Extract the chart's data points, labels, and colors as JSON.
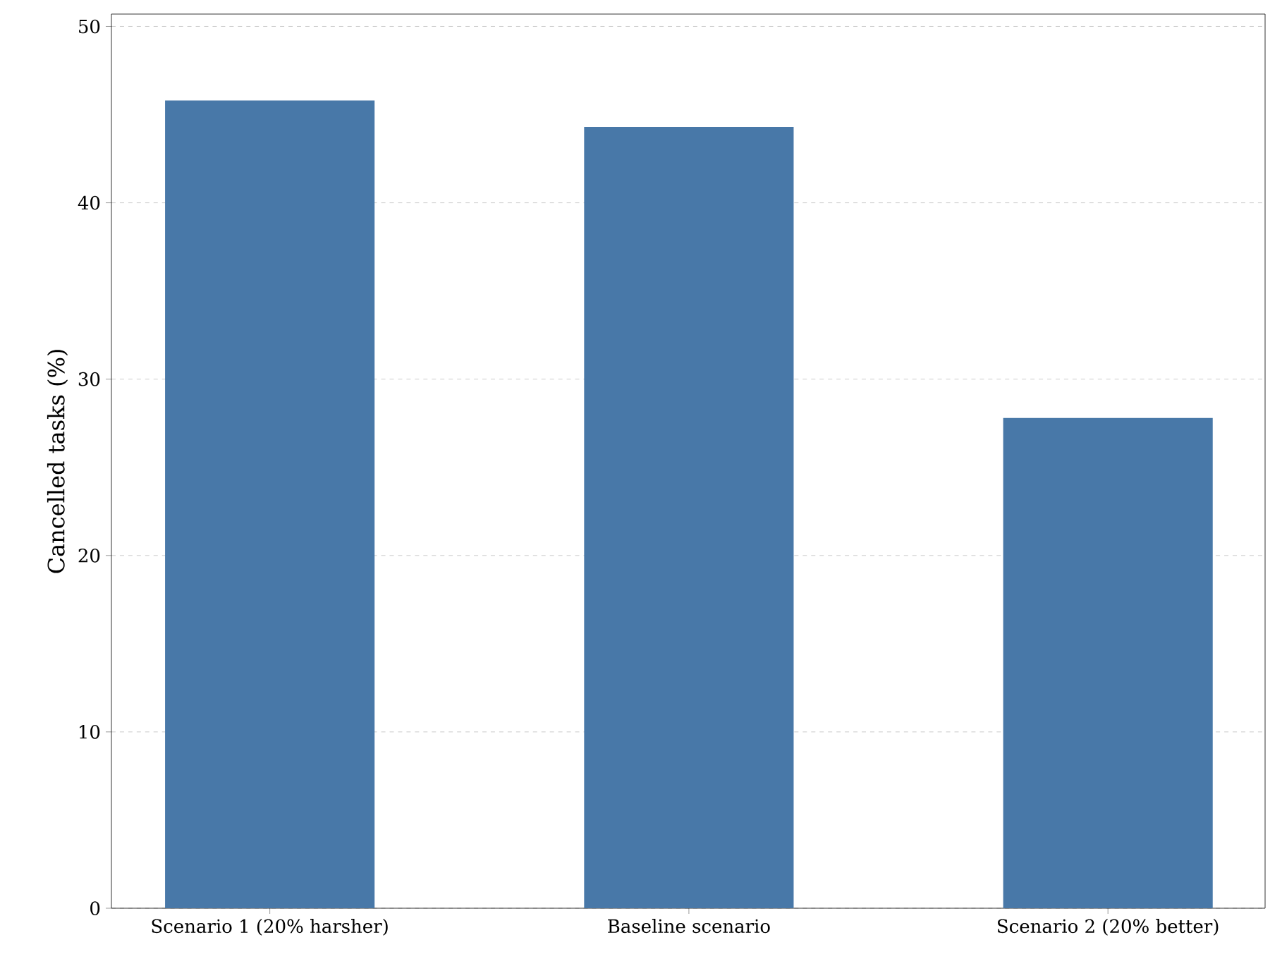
{
  "chart_data": {
    "type": "bar",
    "ylabel": "Cancelled tasks (%)",
    "categories": [
      "Scenario 1 (20% harsher)",
      "Baseline scenario",
      "Scenario 2 (20% better)"
    ],
    "values": [
      45.8,
      44.3,
      27.8
    ],
    "color": "#4878a8",
    "ylim": [
      0,
      50.7
    ],
    "yticks": [
      0,
      10,
      20,
      30,
      40,
      50
    ],
    "grid": "y"
  }
}
